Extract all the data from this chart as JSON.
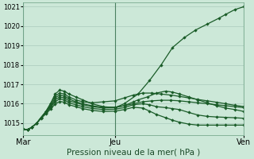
{
  "xlabel": "Pression niveau de la mer( hPa )",
  "bg_color": "#cce8d8",
  "grid_color": "#aacabc",
  "line_color": "#1a5c28",
  "ylim": [
    1014.4,
    1021.2
  ],
  "xlim": [
    0,
    96
  ],
  "xtick_labels": [
    "Mar",
    "Jeu",
    "Ven"
  ],
  "xtick_positions": [
    0,
    40,
    96
  ],
  "ytick_values": [
    1015,
    1016,
    1017,
    1018,
    1019,
    1020,
    1021
  ],
  "ytick_labels": [
    "1015",
    "1016",
    "1017",
    "1018",
    "1019",
    "1020",
    "1021"
  ],
  "lines": [
    {
      "x": [
        0,
        2,
        4,
        6,
        8,
        10,
        12,
        14,
        16,
        18,
        20,
        23,
        26,
        30,
        35,
        40,
        44,
        50,
        55,
        60,
        65,
        70,
        75,
        80,
        85,
        88,
        92,
        96
      ],
      "y": [
        1014.7,
        1014.65,
        1014.8,
        1015.0,
        1015.3,
        1015.6,
        1016.0,
        1016.5,
        1016.7,
        1016.65,
        1016.5,
        1016.35,
        1016.2,
        1016.0,
        1015.85,
        1015.8,
        1016.0,
        1016.5,
        1017.2,
        1018.0,
        1018.9,
        1019.4,
        1019.8,
        1020.1,
        1020.4,
        1020.6,
        1020.85,
        1021.0
      ]
    },
    {
      "x": [
        0,
        2,
        4,
        6,
        8,
        10,
        12,
        14,
        16,
        18,
        20,
        23,
        26,
        30,
        35,
        40,
        44,
        48,
        52,
        56,
        60,
        64,
        68,
        72,
        76,
        80,
        84,
        88,
        92,
        96
      ],
      "y": [
        1014.7,
        1014.65,
        1014.8,
        1015.0,
        1015.3,
        1015.6,
        1016.0,
        1016.4,
        1016.55,
        1016.5,
        1016.35,
        1016.2,
        1016.1,
        1016.05,
        1016.1,
        1016.15,
        1016.3,
        1016.45,
        1016.55,
        1016.55,
        1016.5,
        1016.45,
        1016.38,
        1016.3,
        1016.22,
        1016.15,
        1016.08,
        1016.0,
        1015.92,
        1015.85
      ]
    },
    {
      "x": [
        0,
        2,
        4,
        6,
        8,
        10,
        12,
        14,
        16,
        18,
        20,
        23,
        26,
        30,
        35,
        40,
        44,
        48,
        52,
        56,
        60,
        64,
        68,
        72,
        76,
        80,
        84,
        88,
        92,
        96
      ],
      "y": [
        1014.7,
        1014.65,
        1014.8,
        1015.0,
        1015.3,
        1015.6,
        1015.9,
        1016.3,
        1016.45,
        1016.4,
        1016.25,
        1016.1,
        1016.0,
        1015.9,
        1015.82,
        1015.82,
        1015.9,
        1016.0,
        1016.1,
        1016.15,
        1016.18,
        1016.18,
        1016.15,
        1016.1,
        1016.05,
        1016.0,
        1015.95,
        1015.9,
        1015.85,
        1015.8
      ]
    },
    {
      "x": [
        0,
        2,
        4,
        6,
        8,
        10,
        12,
        14,
        16,
        18,
        20,
        23,
        26,
        30,
        35,
        40,
        44,
        48,
        50,
        54,
        58,
        62,
        65,
        68,
        72,
        76,
        80,
        84,
        88,
        92,
        96
      ],
      "y": [
        1014.7,
        1014.65,
        1014.8,
        1015.0,
        1015.3,
        1015.55,
        1015.85,
        1016.2,
        1016.35,
        1016.3,
        1016.15,
        1016.05,
        1015.95,
        1015.85,
        1015.78,
        1015.8,
        1015.9,
        1016.1,
        1016.2,
        1016.35,
        1016.55,
        1016.65,
        1016.6,
        1016.5,
        1016.35,
        1016.2,
        1016.05,
        1015.9,
        1015.78,
        1015.7,
        1015.6
      ]
    },
    {
      "x": [
        0,
        2,
        4,
        6,
        8,
        10,
        12,
        14,
        16,
        18,
        20,
        23,
        26,
        30,
        35,
        40,
        44,
        48,
        52,
        55,
        58,
        62,
        65,
        68,
        72,
        76,
        80,
        84,
        88,
        92,
        96
      ],
      "y": [
        1014.7,
        1014.65,
        1014.8,
        1015.0,
        1015.28,
        1015.52,
        1015.8,
        1016.1,
        1016.25,
        1016.2,
        1016.05,
        1015.95,
        1015.85,
        1015.76,
        1015.7,
        1015.72,
        1015.8,
        1015.95,
        1016.0,
        1015.95,
        1015.85,
        1015.8,
        1015.75,
        1015.7,
        1015.55,
        1015.42,
        1015.35,
        1015.32,
        1015.3,
        1015.28,
        1015.25
      ]
    },
    {
      "x": [
        0,
        2,
        4,
        6,
        8,
        10,
        12,
        14,
        16,
        18,
        20,
        23,
        26,
        30,
        35,
        40,
        44,
        48,
        52,
        55,
        58,
        62,
        65,
        68,
        72,
        76,
        80,
        84,
        88,
        92,
        96
      ],
      "y": [
        1014.7,
        1014.65,
        1014.8,
        1015.0,
        1015.25,
        1015.48,
        1015.72,
        1015.98,
        1016.12,
        1016.08,
        1015.95,
        1015.85,
        1015.75,
        1015.66,
        1015.6,
        1015.62,
        1015.7,
        1015.82,
        1015.78,
        1015.62,
        1015.45,
        1015.28,
        1015.15,
        1015.05,
        1014.95,
        1014.9,
        1014.9,
        1014.9,
        1014.9,
        1014.9,
        1014.9
      ]
    }
  ]
}
